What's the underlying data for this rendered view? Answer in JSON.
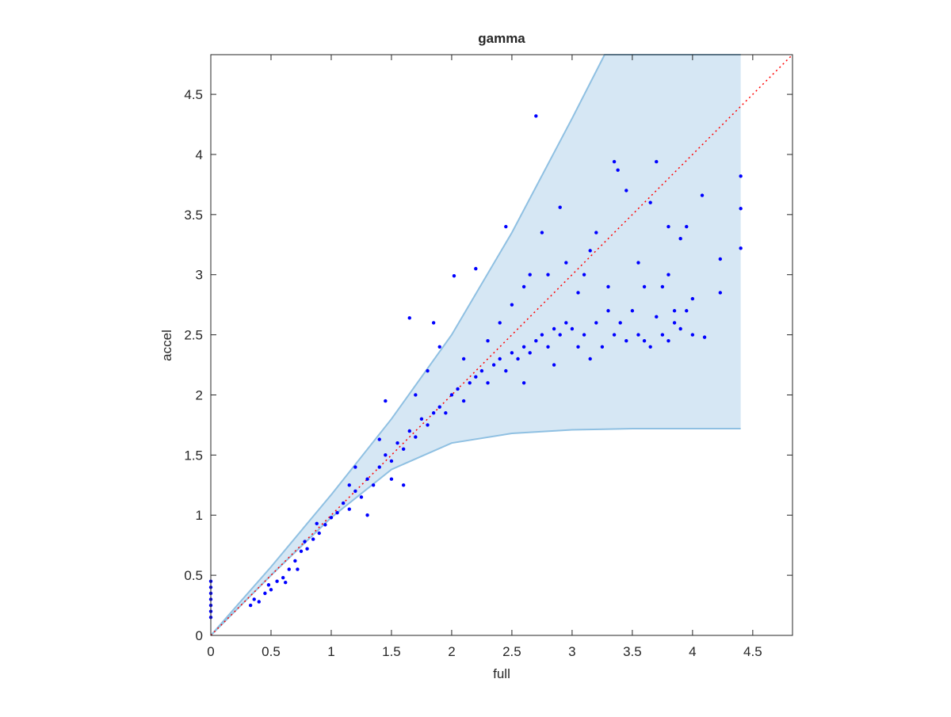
{
  "chart_data": {
    "type": "scatter",
    "title": "gamma",
    "xlabel": "full",
    "ylabel": "accel",
    "xlim": [
      0,
      4.83
    ],
    "ylim": [
      0,
      4.83
    ],
    "xticks": [
      0,
      0.5,
      1,
      1.5,
      2,
      2.5,
      3,
      3.5,
      4,
      4.5
    ],
    "yticks": [
      0,
      0.5,
      1,
      1.5,
      2,
      2.5,
      3,
      3.5,
      4,
      4.5
    ],
    "band": {
      "color": "#d6e7f4",
      "edge_color": "#8fc0e2",
      "x": [
        0,
        0.5,
        1,
        1.5,
        2,
        2.5,
        3,
        3.27,
        3.5,
        4.4
      ],
      "upper": [
        0,
        0.57,
        1.17,
        1.8,
        2.5,
        3.35,
        4.3,
        4.83,
        4.83,
        4.83
      ],
      "lower": [
        0,
        0.5,
        0.98,
        1.38,
        1.6,
        1.68,
        1.71,
        1.715,
        1.72,
        1.72
      ]
    },
    "line": {
      "color": "#ff0000",
      "x": [
        0,
        4.83
      ],
      "y": [
        0,
        4.83
      ]
    },
    "scatter": {
      "color": "#0000ff",
      "x": [
        0,
        0,
        0,
        0,
        0,
        0,
        0,
        0.33,
        0.36,
        0.4,
        0.45,
        0.5,
        0.55,
        0.6,
        0.65,
        0.7,
        0.75,
        0.8,
        0.85,
        0.9,
        0.95,
        1.0,
        0.88,
        0.78,
        0.62,
        0.48,
        0.72,
        1.05,
        1.1,
        1.15,
        1.2,
        1.25,
        1.3,
        1.35,
        1.4,
        1.45,
        1.5,
        1.55,
        1.6,
        1.65,
        1.7,
        1.75,
        1.8,
        1.85,
        1.9,
        1.95,
        2.0,
        1.2,
        1.4,
        1.5,
        1.6,
        1.65,
        1.8,
        1.9,
        1.85,
        1.45,
        1.3,
        1.15,
        1.7,
        2.05,
        2.1,
        2.15,
        2.2,
        2.25,
        2.3,
        2.35,
        2.4,
        2.45,
        2.5,
        2.55,
        2.6,
        2.65,
        2.7,
        2.75,
        2.8,
        2.85,
        2.9,
        2.95,
        3.0,
        2.02,
        2.2,
        2.45,
        2.7,
        2.9,
        2.75,
        2.6,
        2.4,
        2.8,
        2.95,
        2.5,
        2.3,
        2.6,
        2.85,
        2.1,
        2.65,
        3.05,
        3.1,
        3.15,
        3.2,
        3.25,
        3.3,
        3.35,
        3.4,
        3.45,
        3.5,
        3.55,
        3.6,
        3.65,
        3.7,
        3.75,
        3.8,
        3.85,
        3.9,
        3.95,
        4.0,
        4.1,
        3.35,
        3.38,
        3.45,
        3.7,
        3.65,
        3.8,
        4.08,
        4.4,
        4.4,
        4.4,
        4.23,
        4.23,
        3.2,
        3.1,
        3.3,
        3.55,
        3.75,
        3.95,
        3.8,
        3.85,
        4.0,
        3.05,
        3.15,
        3.6,
        3.9
      ],
      "y": [
        0.15,
        0.2,
        0.25,
        0.3,
        0.35,
        0.4,
        0.45,
        0.25,
        0.3,
        0.28,
        0.35,
        0.38,
        0.45,
        0.48,
        0.55,
        0.62,
        0.7,
        0.72,
        0.8,
        0.85,
        0.92,
        0.98,
        0.93,
        0.78,
        0.44,
        0.42,
        0.55,
        1.02,
        1.1,
        1.05,
        1.2,
        1.15,
        1.3,
        1.25,
        1.4,
        1.5,
        1.45,
        1.6,
        1.55,
        1.7,
        1.65,
        1.8,
        1.75,
        1.85,
        1.9,
        1.85,
        2.0,
        1.4,
        1.63,
        1.3,
        1.25,
        2.64,
        2.2,
        2.4,
        2.6,
        1.95,
        1.0,
        1.25,
        2.0,
        2.05,
        1.95,
        2.1,
        2.15,
        2.2,
        2.1,
        2.25,
        2.3,
        2.2,
        2.35,
        2.3,
        2.4,
        2.35,
        2.45,
        2.5,
        2.4,
        2.55,
        2.5,
        2.6,
        2.55,
        2.99,
        3.05,
        3.4,
        4.32,
        3.56,
        3.35,
        2.9,
        2.6,
        3.0,
        3.1,
        2.75,
        2.45,
        2.1,
        2.25,
        2.3,
        3.0,
        2.4,
        2.5,
        2.3,
        2.6,
        2.4,
        2.7,
        2.5,
        2.6,
        2.45,
        2.7,
        2.5,
        2.45,
        2.4,
        2.65,
        2.5,
        2.45,
        2.6,
        2.55,
        2.7,
        2.5,
        2.48,
        3.94,
        3.87,
        3.7,
        3.94,
        3.6,
        3.4,
        3.66,
        3.82,
        3.55,
        3.22,
        3.13,
        2.85,
        3.35,
        3.0,
        2.9,
        3.1,
        2.9,
        3.4,
        3.0,
        2.7,
        2.8,
        2.85,
        3.2,
        2.9,
        3.3
      ]
    }
  }
}
